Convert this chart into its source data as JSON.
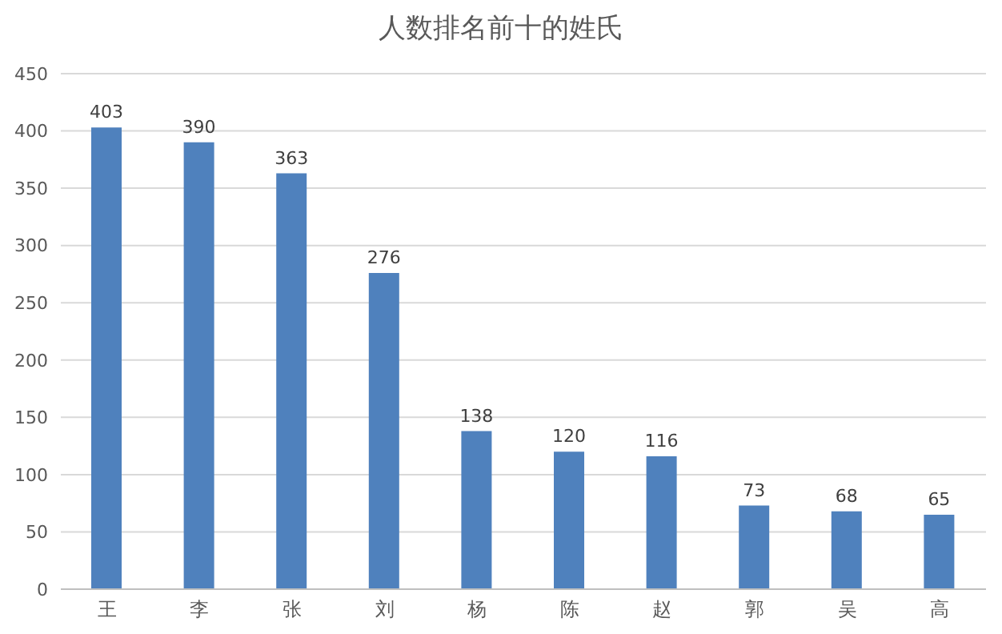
{
  "chart_data": {
    "type": "bar",
    "title": "人数排名前十的姓氏",
    "categories": [
      "王",
      "李",
      "张",
      "刘",
      "杨",
      "陈",
      "赵",
      "郭",
      "吴",
      "高"
    ],
    "values": [
      403,
      390,
      363,
      276,
      138,
      120,
      116,
      73,
      68,
      65
    ],
    "color": "#4f81bd",
    "ylim": [
      0,
      450
    ],
    "yticks": [
      0,
      50,
      100,
      150,
      200,
      250,
      300,
      350,
      400,
      450
    ],
    "grid": "y",
    "data_labels": true
  }
}
